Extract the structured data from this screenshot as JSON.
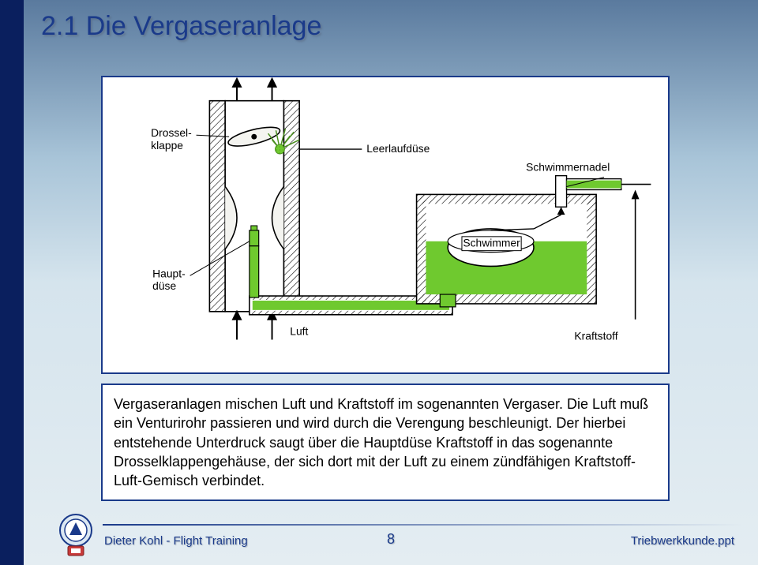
{
  "page": {
    "title": "2.1 Die Vergaseranlage",
    "body_text": "Vergaseranlagen mischen Luft und Kraftstoff im sogenannten Vergaser. Die Luft muß ein Venturirohr passieren und wird durch die Verengung beschleunigt. Der hierbei entstehende Unterdruck saugt über die Hauptdüse Kraftstoff in das sogenannte Drosselklappengehäuse, der sich dort mit der Luft zu einem zündfähigen Kraftstoff-Luft-Gemisch verbindet.",
    "footer_author": "Dieter Kohl - Flight Training",
    "footer_page": "8",
    "footer_file": "Triebwerkkunde.ppt"
  },
  "diagram": {
    "labels": {
      "drosselklappe": "Drossel-\nklappe",
      "hauptduese": "Haupt-\ndüse",
      "luft": "Luft",
      "leerlaufduese": "Leerlaufdüse",
      "schwimmernadel": "Schwimmernadel",
      "schwimmer": "Schwimmer",
      "kraftstoff": "Kraftstoff"
    },
    "colors": {
      "outline": "#000000",
      "fuel": "#6fc92f",
      "fuel_dark": "#4a8f1e",
      "background": "#ffffff",
      "body_fill": "#f4f4f0",
      "hatch": "#000000"
    },
    "style": {
      "outline_width": 1.6,
      "label_fontsize": 14,
      "label_font": "Arial"
    }
  },
  "theme": {
    "accent_color": "#1a3a8a",
    "leftbar_color": "#0a1f5e",
    "bg_gradient_top": "#5a7a9e",
    "bg_gradient_mid": "#d5e4ed",
    "text_title_size": 34,
    "text_body_size": 18
  }
}
